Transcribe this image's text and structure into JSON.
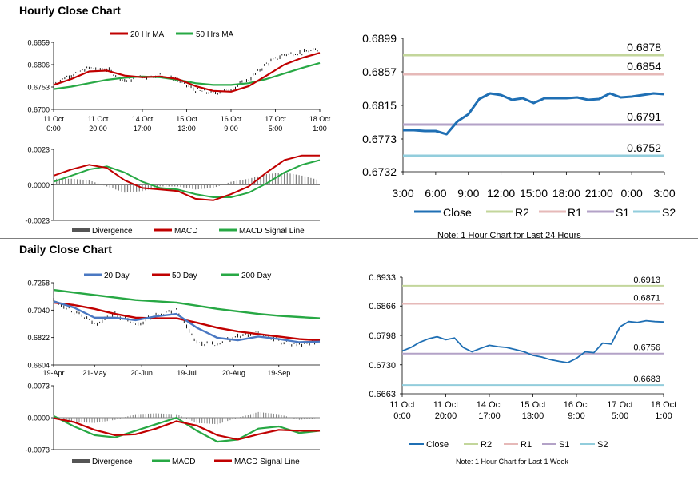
{
  "sections": {
    "hourly_title": "Hourly Close Chart",
    "daily_title": "Daily Close Chart"
  },
  "colors": {
    "close": "#1f6fb4",
    "ma_red": "#c00000",
    "ma_green": "#27a844",
    "ma_blue": "#4a78c2",
    "divergence": "#7f7f7f",
    "r2": "#c3d69b",
    "r1": "#e6b9b8",
    "s1": "#b3a2c7",
    "s2": "#92cddc"
  },
  "chart_data": [
    {
      "id": "hourly_price",
      "type": "line",
      "legend": [
        "20 Hr MA",
        "50 Hrs MA"
      ],
      "y_ticks": [
        "0.6859",
        "0.6806",
        "0.6753",
        "0.6700"
      ],
      "ylim": [
        0.67,
        0.6859
      ],
      "x_ticks": [
        [
          "11 Oct",
          "0:00"
        ],
        [
          "11 Oct",
          "20:00"
        ],
        [
          "14 Oct",
          "17:00"
        ],
        [
          "15 Oct",
          "13:00"
        ],
        [
          "16 Oct",
          "9:00"
        ],
        [
          "17 Oct",
          "5:00"
        ],
        [
          "18 Oct",
          "1:00"
        ]
      ],
      "x": [
        0,
        8,
        16,
        24,
        32,
        40,
        48,
        56,
        64,
        72,
        80,
        88,
        96,
        104,
        112,
        120
      ],
      "xlim": [
        0,
        120
      ],
      "price": [
        0.6762,
        0.6782,
        0.6798,
        0.6795,
        0.6768,
        0.6775,
        0.6782,
        0.677,
        0.6745,
        0.6738,
        0.6748,
        0.677,
        0.6808,
        0.683,
        0.6835,
        0.6842
      ],
      "ma20": [
        0.6758,
        0.6772,
        0.679,
        0.6792,
        0.678,
        0.6776,
        0.6778,
        0.6772,
        0.6755,
        0.6744,
        0.6742,
        0.6755,
        0.678,
        0.6806,
        0.6822,
        0.6834
      ],
      "ma50": [
        0.6748,
        0.6754,
        0.6762,
        0.677,
        0.6775,
        0.6778,
        0.6776,
        0.677,
        0.6762,
        0.6758,
        0.6758,
        0.6762,
        0.6772,
        0.6785,
        0.6798,
        0.681
      ]
    },
    {
      "id": "hourly_macd",
      "type": "line",
      "legend": [
        "Divergence",
        "MACD",
        "MACD Signal Line"
      ],
      "y_ticks": [
        "0.0023",
        "0.0000",
        "-0.0023"
      ],
      "ylim": [
        -0.0023,
        0.0023
      ],
      "x": [
        0,
        8,
        16,
        24,
        32,
        40,
        48,
        56,
        64,
        72,
        80,
        88,
        96,
        104,
        112,
        120
      ],
      "xlim": [
        0,
        120
      ],
      "macd": [
        0.0006,
        0.001,
        0.0013,
        0.0011,
        0.0003,
        -0.0002,
        -0.0003,
        -0.0004,
        -0.0009,
        -0.001,
        -0.0006,
        -0.0001,
        0.0008,
        0.0016,
        0.0019,
        0.0019
      ],
      "signal": [
        0.0002,
        0.0006,
        0.001,
        0.0012,
        0.0008,
        0.0002,
        -0.0002,
        -0.0003,
        -0.0006,
        -0.0008,
        -0.0008,
        -0.0005,
        0.0001,
        0.0008,
        0.0013,
        0.0016
      ],
      "divergence": [
        0.0004,
        0.0004,
        0.0003,
        -0.0001,
        -0.0005,
        -0.0004,
        -0.0001,
        -0.0001,
        -0.0003,
        -0.0002,
        0.0002,
        0.0004,
        0.0007,
        0.0008,
        0.0006,
        0.0003
      ]
    },
    {
      "id": "hourly_24h",
      "type": "line",
      "legend": [
        "Close",
        "R2",
        "R1",
        "S1",
        "S2"
      ],
      "y_ticks": [
        "0.6899",
        "0.6857",
        "0.6815",
        "0.6773",
        "0.6732"
      ],
      "ylim": [
        0.6732,
        0.6899
      ],
      "x_ticks": [
        "3:00",
        "6:00",
        "9:00",
        "12:00",
        "15:00",
        "18:00",
        "21:00",
        "0:00",
        "3:00"
      ],
      "xlim": [
        0,
        24
      ],
      "levels": [
        {
          "name": "R2",
          "value": 0.6878,
          "label": "0.6878"
        },
        {
          "name": "R1",
          "value": 0.6854,
          "label": "0.6854"
        },
        {
          "name": "S1",
          "value": 0.6791,
          "label": "0.6791"
        },
        {
          "name": "S2",
          "value": 0.6752,
          "label": "0.6752"
        }
      ],
      "x": [
        0,
        1,
        2,
        3,
        4,
        5,
        6,
        7,
        8,
        9,
        10,
        11,
        12,
        13,
        14,
        15,
        16,
        17,
        18,
        19,
        20,
        21,
        22,
        23,
        24
      ],
      "close": [
        0.6784,
        0.6784,
        0.6783,
        0.6783,
        0.6779,
        0.6795,
        0.6804,
        0.6823,
        0.683,
        0.6828,
        0.6822,
        0.6824,
        0.6818,
        0.6824,
        0.6824,
        0.6824,
        0.6825,
        0.6822,
        0.6823,
        0.683,
        0.6825,
        0.6826,
        0.6828,
        0.683,
        0.6829
      ],
      "note": "Note: 1 Hour Chart for Last 24 Hours"
    },
    {
      "id": "daily_price",
      "type": "line",
      "legend": [
        "20 Day",
        "50 Day",
        "200 Day"
      ],
      "y_ticks": [
        "0.7258",
        "0.7040",
        "0.6822",
        "0.6604"
      ],
      "ylim": [
        0.6604,
        0.7258
      ],
      "x_ticks": [
        "19-Apr",
        "21-May",
        "20-Jun",
        "19-Jul",
        "20-Aug",
        "19-Sep"
      ],
      "x": [
        0,
        10,
        20,
        30,
        40,
        50,
        60,
        70,
        80,
        90,
        100,
        110,
        120,
        130
      ],
      "xlim": [
        0,
        130
      ],
      "price": [
        0.712,
        0.703,
        0.693,
        0.701,
        0.692,
        0.7,
        0.705,
        0.678,
        0.676,
        0.683,
        0.686,
        0.679,
        0.676,
        0.68
      ],
      "ma20": [
        0.711,
        0.706,
        0.698,
        0.698,
        0.696,
        0.699,
        0.701,
        0.69,
        0.682,
        0.68,
        0.683,
        0.681,
        0.6785,
        0.679
      ],
      "ma50": [
        0.71,
        0.708,
        0.705,
        0.701,
        0.698,
        0.6975,
        0.6975,
        0.694,
        0.69,
        0.687,
        0.685,
        0.683,
        0.681,
        0.68
      ],
      "ma200": [
        0.72,
        0.718,
        0.716,
        0.714,
        0.712,
        0.711,
        0.71,
        0.7075,
        0.705,
        0.703,
        0.701,
        0.6995,
        0.6985,
        0.6975
      ]
    },
    {
      "id": "daily_macd",
      "type": "line",
      "legend": [
        "Divergence",
        "MACD",
        "MACD Signal Line"
      ],
      "y_ticks": [
        "0.0073",
        "0.0000",
        "-0.0073"
      ],
      "ylim": [
        -0.0073,
        0.0073
      ],
      "x": [
        0,
        10,
        20,
        30,
        40,
        50,
        60,
        70,
        80,
        90,
        100,
        110,
        120,
        130
      ],
      "xlim": [
        0,
        130
      ],
      "macd": [
        0.0004,
        -0.002,
        -0.004,
        -0.0045,
        -0.003,
        -0.0015,
        0.0,
        -0.003,
        -0.0055,
        -0.005,
        -0.0025,
        -0.002,
        -0.0035,
        -0.003
      ],
      "signal": [
        -0.0001,
        -0.001,
        -0.0028,
        -0.004,
        -0.0038,
        -0.0025,
        -0.0008,
        -0.0018,
        -0.004,
        -0.005,
        -0.0038,
        -0.0028,
        -0.003,
        -0.003
      ],
      "divergence": [
        0.0005,
        -0.001,
        -0.0012,
        -0.0005,
        0.0008,
        0.001,
        0.0008,
        -0.0012,
        -0.0015,
        0.0,
        0.0013,
        0.0008,
        -0.0005,
        0.0
      ]
    },
    {
      "id": "weekly_1h",
      "type": "line",
      "legend": [
        "Close",
        "R2",
        "R1",
        "S1",
        "S2"
      ],
      "y_ticks": [
        "0.6933",
        "0.6866",
        "0.6798",
        "0.6730",
        "0.6663"
      ],
      "ylim": [
        0.6663,
        0.6933
      ],
      "x_ticks": [
        [
          "11 Oct",
          "0:00"
        ],
        [
          "11 Oct",
          "20:00"
        ],
        [
          "14 Oct",
          "17:00"
        ],
        [
          "15 Oct",
          "13:00"
        ],
        [
          "16 Oct",
          "9:00"
        ],
        [
          "17 Oct",
          "5:00"
        ],
        [
          "18 Oct",
          "1:00"
        ]
      ],
      "xlim": [
        0,
        120
      ],
      "levels": [
        {
          "name": "R2",
          "value": 0.6913,
          "label": "0.6913"
        },
        {
          "name": "R1",
          "value": 0.6871,
          "label": "0.6871"
        },
        {
          "name": "S1",
          "value": 0.6756,
          "label": "0.6756"
        },
        {
          "name": "S2",
          "value": 0.6683,
          "label": "0.6683"
        }
      ],
      "x": [
        0,
        4,
        8,
        12,
        16,
        20,
        24,
        28,
        32,
        36,
        40,
        44,
        48,
        52,
        56,
        60,
        64,
        68,
        72,
        76,
        80,
        84,
        88,
        92,
        96,
        100,
        104,
        108,
        112,
        116,
        120
      ],
      "close": [
        0.6762,
        0.677,
        0.6782,
        0.679,
        0.6795,
        0.6788,
        0.6792,
        0.677,
        0.676,
        0.6768,
        0.6775,
        0.6772,
        0.677,
        0.6765,
        0.676,
        0.6752,
        0.6748,
        0.6742,
        0.6738,
        0.6735,
        0.6745,
        0.676,
        0.6758,
        0.678,
        0.6778,
        0.6818,
        0.683,
        0.6828,
        0.6832,
        0.683,
        0.6829
      ],
      "note": "Note: 1 Hour Chart for Last 1 Week"
    }
  ]
}
